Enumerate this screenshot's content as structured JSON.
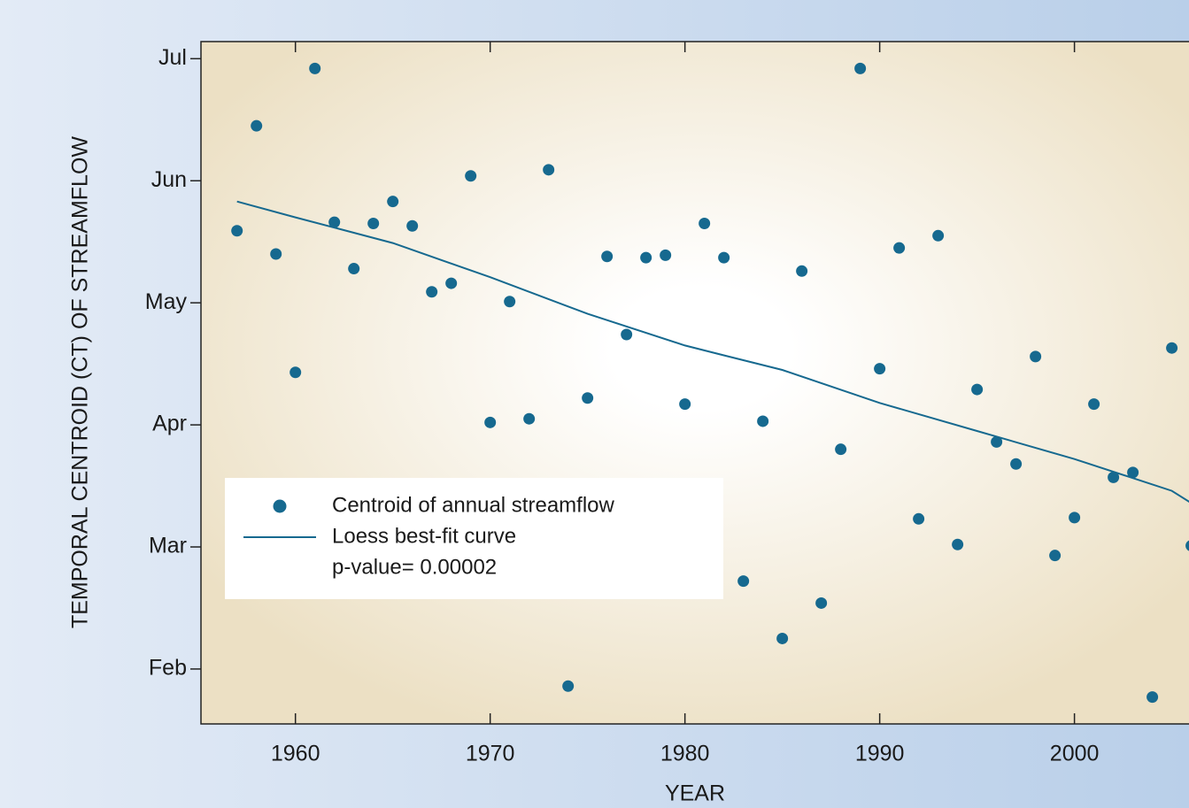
{
  "chart_data": {
    "type": "scatter",
    "x_label": "YEAR",
    "y_label": "TEMPORAL CENTROID (CT) OF STREAMFLOW",
    "annotation": "p-value= 0.00002",
    "xlim": [
      1955.15,
      2006.2
    ],
    "ylim": [
      1.55,
      7.14
    ],
    "xticks": [
      1960,
      1970,
      1980,
      1990,
      2000
    ],
    "yticks": [
      {
        "value": 2,
        "label": "Feb"
      },
      {
        "value": 3,
        "label": "Mar"
      },
      {
        "value": 4,
        "label": "Apr"
      },
      {
        "value": 5,
        "label": "May"
      },
      {
        "value": 6,
        "label": "Jun"
      },
      {
        "value": 7,
        "label": "Jul"
      }
    ],
    "series": [
      {
        "name": "Centroid of annual streamflow",
        "type": "scatter",
        "color": "#16698f",
        "x": [
          1957,
          1958,
          1959,
          1960,
          1961,
          1962,
          1963,
          1964,
          1965,
          1966,
          1967,
          1968,
          1969,
          1970,
          1971,
          1972,
          1973,
          1974,
          1975,
          1976,
          1977,
          1978,
          1979,
          1980,
          1981,
          1982,
          1983,
          1984,
          1985,
          1986,
          1987,
          1988,
          1989,
          1990,
          1991,
          1992,
          1993,
          1994,
          1995,
          1996,
          1997,
          1998,
          1999,
          2000,
          2001,
          2002,
          2003,
          2004,
          2005,
          2006
        ],
        "values": [
          5.59,
          6.45,
          5.4,
          4.43,
          6.92,
          5.66,
          5.28,
          5.65,
          5.83,
          5.63,
          5.09,
          5.16,
          6.04,
          4.02,
          5.01,
          4.05,
          6.09,
          1.86,
          4.22,
          5.38,
          4.74,
          5.37,
          5.39,
          4.17,
          5.65,
          5.37,
          2.72,
          4.03,
          2.25,
          5.26,
          2.54,
          3.8,
          6.92,
          4.46,
          5.45,
          3.23,
          5.55,
          3.02,
          4.29,
          3.86,
          3.68,
          4.56,
          2.93,
          3.24,
          4.17,
          3.57,
          3.61,
          1.77,
          4.63,
          3.01
        ]
      },
      {
        "name": "Loess best-fit curve",
        "type": "line",
        "color": "#16698f",
        "x": [
          1957,
          1960,
          1965,
          1970,
          1975,
          1980,
          1982,
          1985,
          1990,
          1995,
          2000,
          2005,
          2006
        ],
        "values": [
          5.83,
          5.7,
          5.49,
          5.21,
          4.91,
          4.65,
          4.57,
          4.45,
          4.18,
          3.95,
          3.72,
          3.46,
          3.36
        ]
      }
    ]
  }
}
